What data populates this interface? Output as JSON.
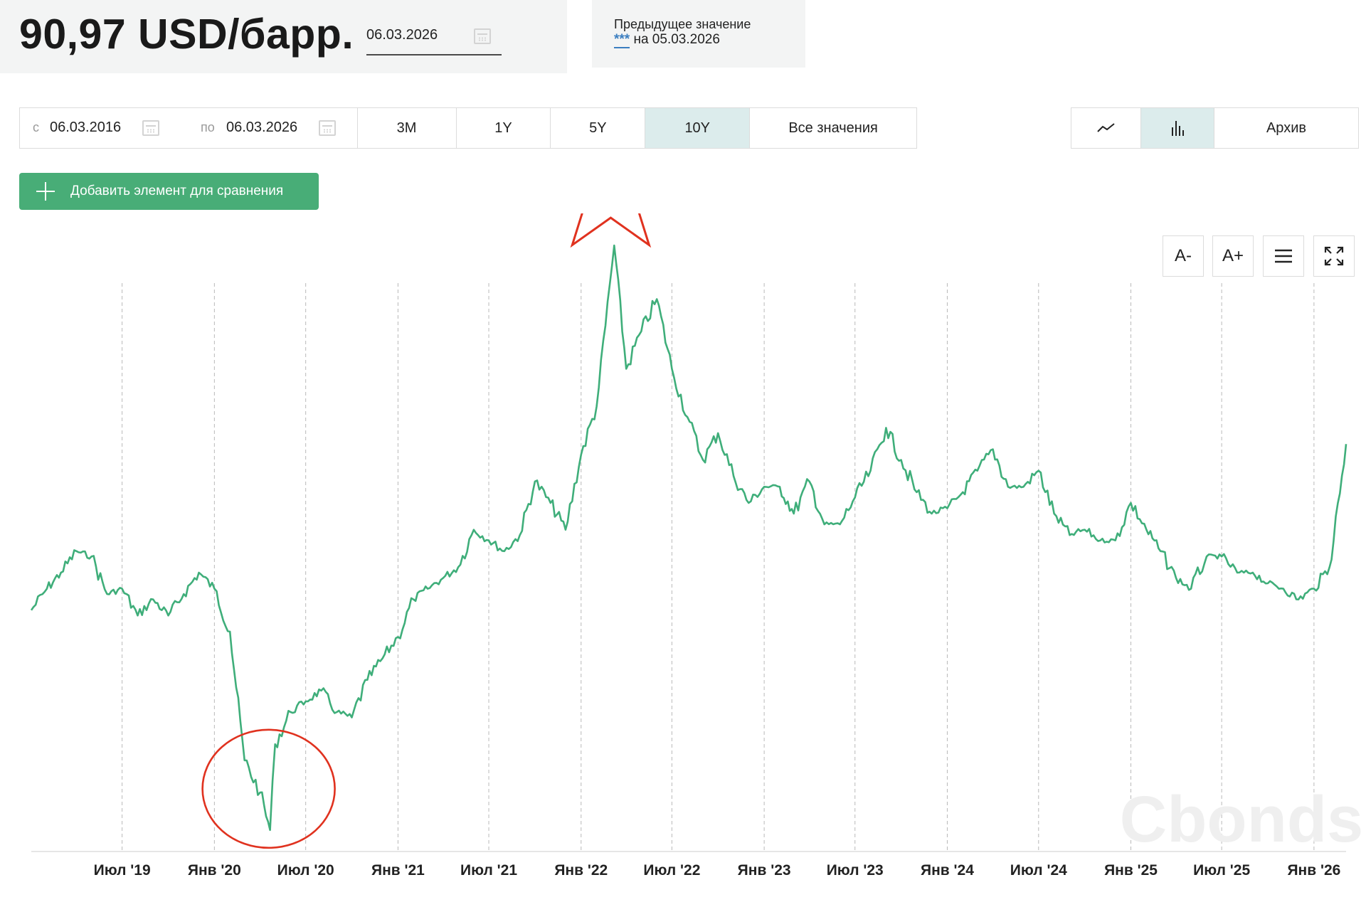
{
  "header": {
    "price": "90,97 USD/барр.",
    "date": "06.03.2026",
    "prev_label": "Предыдущее значение",
    "prev_stars": "***",
    "prev_date_text": " на 05.03.2026"
  },
  "range": {
    "from_label": "с",
    "from_value": "06.03.2016",
    "to_label": "по",
    "to_value": "06.03.2026",
    "periods": [
      "3M",
      "1Y",
      "5Y",
      "10Y",
      "Все значения"
    ],
    "active_period": "10Y"
  },
  "view": {
    "line_icon": "line-chart-icon",
    "bar_icon": "bar-chart-icon",
    "active": "bar",
    "archive_label": "Архив"
  },
  "add_compare_label": "Добавить элемент для сравнения",
  "tools": {
    "font_decrease": "A-",
    "font_increase": "A+",
    "menu_icon": "menu-icon",
    "fullscreen_icon": "fullscreen-icon"
  },
  "watermark": "Cbonds",
  "colors": {
    "line": "#3fae7a",
    "accent": "#48ad77",
    "annotation": "#e0321f",
    "active_tab": "#dcecec"
  },
  "chart_data": {
    "type": "line",
    "title": "",
    "xlabel": "",
    "ylabel": "",
    "y_axis_labels_shown": false,
    "x_tick_labels": [
      "Июл '19",
      "Янв '20",
      "Июл '20",
      "Янв '21",
      "Июл '21",
      "Янв '22",
      "Июл '22",
      "Янв '23",
      "Июл '23",
      "Янв '24",
      "Июл '24",
      "Янв '25",
      "Июл '25",
      "Янв '26"
    ],
    "xlim": [
      "2019-01",
      "2026-03-06"
    ],
    "ylim": [
      15,
      130
    ],
    "grid": "vertical dashed",
    "series": [
      {
        "x": [
          "2019-01",
          "2019-02",
          "2019-03",
          "2019-04",
          "2019-05",
          "2019-06",
          "2019-07",
          "2019-08",
          "2019-09",
          "2019-10",
          "2019-11",
          "2019-12",
          "2020-01",
          "2020-02",
          "2020-03",
          "2020-04",
          "2020-04-21",
          "2020-05",
          "2020-06",
          "2020-07",
          "2020-08",
          "2020-09",
          "2020-10",
          "2020-11",
          "2020-12",
          "2021-01",
          "2021-02",
          "2021-03",
          "2021-04",
          "2021-05",
          "2021-06",
          "2021-07",
          "2021-08",
          "2021-09",
          "2021-10",
          "2021-11",
          "2021-12",
          "2022-01",
          "2022-02",
          "2022-03-08",
          "2022-04",
          "2022-05",
          "2022-06",
          "2022-07",
          "2022-08",
          "2022-09",
          "2022-10",
          "2022-11",
          "2022-12",
          "2023-01",
          "2023-02",
          "2023-03",
          "2023-04",
          "2023-05",
          "2023-06",
          "2023-07",
          "2023-08",
          "2023-09",
          "2023-10",
          "2023-11",
          "2023-12",
          "2024-01",
          "2024-02",
          "2024-03",
          "2024-04",
          "2024-05",
          "2024-06",
          "2024-07",
          "2024-08",
          "2024-09",
          "2024-10",
          "2024-11",
          "2024-12",
          "2025-01",
          "2025-02",
          "2025-03",
          "2025-04",
          "2025-05",
          "2025-06",
          "2025-07",
          "2025-08",
          "2025-09",
          "2025-10",
          "2025-11",
          "2025-12",
          "2026-01",
          "2026-02",
          "2026-03-06"
        ],
        "y": [
          60,
          64,
          67,
          71,
          70,
          63,
          64,
          59,
          62,
          59,
          63,
          67,
          64,
          56,
          32,
          26,
          19,
          35,
          41,
          43,
          45,
          41,
          40,
          47,
          51,
          55,
          62,
          64,
          66,
          68,
          75,
          73,
          71,
          74,
          84,
          80,
          75,
          89,
          98,
          128,
          105,
          112,
          118,
          105,
          96,
          88,
          93,
          85,
          80,
          83,
          83,
          78,
          84,
          76,
          76,
          81,
          86,
          94,
          88,
          82,
          78,
          79,
          82,
          86,
          90,
          83,
          83,
          86,
          78,
          74,
          75,
          73,
          73,
          80,
          75,
          71,
          66,
          64,
          70,
          70,
          67,
          67,
          65,
          64,
          62,
          64,
          68,
          90.97
        ]
      }
    ],
    "annotations": [
      {
        "type": "star",
        "near": "2022-03",
        "meaning": "peak"
      },
      {
        "type": "circle",
        "near": "2020-04",
        "meaning": "trough"
      }
    ]
  }
}
